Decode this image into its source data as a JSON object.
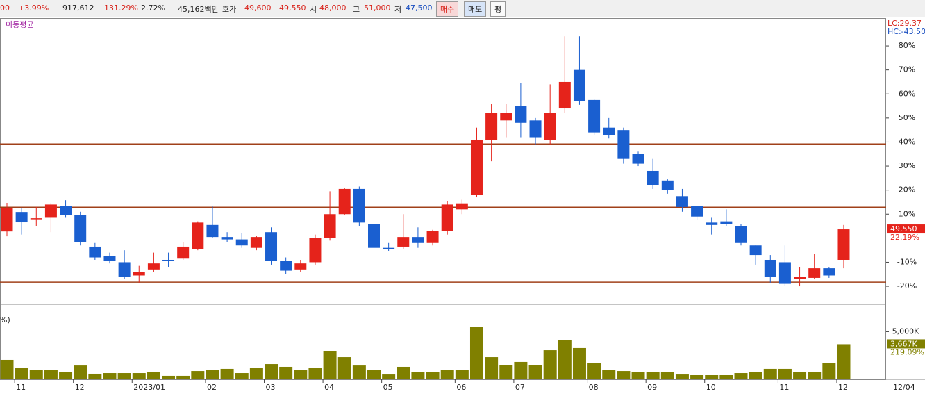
{
  "toolbar": {
    "change": "00",
    "change_pct": "+3.99%",
    "volume": "917,612",
    "volume_ratio": "131.29%",
    "turnover": "2.72%",
    "amount": "45,162백만",
    "quote_label": "호가",
    "ask": "49,600",
    "bid": "49,550",
    "open_label": "시",
    "open": "48,000",
    "high_label": "고",
    "high": "51,000",
    "low_label": "저",
    "low": "47,500",
    "buy": "매수",
    "sell": "매도",
    "avg": "평"
  },
  "chart_data": {
    "type": "candlestick",
    "indicator_label": "이동평균",
    "lc_label": "LC:29.37",
    "hc_label": "HC:-43.50",
    "last_price_label": "49,550",
    "last_change_label": "22.19%",
    "volume_panel_label": "%)",
    "volume_last_label": "3,667K",
    "volume_ratio_label": "219.09%",
    "last_date": "12/04",
    "categories": [
      null,
      "11",
      null,
      null,
      null,
      "12",
      null,
      null,
      null,
      "2023/01",
      null,
      null,
      null,
      null,
      "02",
      null,
      null,
      null,
      "03",
      null,
      null,
      null,
      "04",
      null,
      null,
      null,
      "05",
      null,
      null,
      null,
      null,
      "06",
      null,
      null,
      null,
      "07",
      null,
      null,
      null,
      null,
      "08",
      null,
      null,
      null,
      "09",
      null,
      null,
      null,
      "10",
      null,
      null,
      null,
      null,
      "11",
      null,
      null,
      null,
      "12"
    ],
    "open": [
      2.8,
      10.9,
      8.0,
      8.5,
      13.5,
      9.5,
      -3.5,
      -7.5,
      -10,
      -15.5,
      -13,
      -9,
      -8.5,
      -4.5,
      5.5,
      0.5,
      -0.5,
      -4,
      2.5,
      -9.5,
      -13,
      -10,
      0,
      10,
      20.5,
      6,
      -4,
      -3.5,
      0.5,
      -2,
      3,
      12,
      18,
      41,
      49,
      55,
      49,
      41,
      54,
      70,
      57.5,
      46,
      45,
      35,
      28,
      24,
      17.5,
      13.5,
      6.5,
      7,
      5,
      -3,
      -9,
      -10,
      -17,
      -16.5,
      -12.5,
      -9
    ],
    "high": [
      14.7,
      12.4,
      13,
      14.7,
      15.8,
      11,
      -2,
      -6,
      -5,
      -11.5,
      -6,
      -6,
      -1.5,
      7,
      13.2,
      2.5,
      2,
      1,
      4.5,
      -8,
      -9,
      1.5,
      19.5,
      21,
      21.5,
      6.5,
      -2,
      10,
      4.5,
      3.5,
      15.5,
      16,
      46,
      56,
      56,
      64.5,
      50,
      64,
      84,
      84,
      58,
      50,
      46,
      36,
      33,
      24.5,
      20.5,
      13.5,
      8.5,
      12,
      6,
      -3,
      -7,
      -3,
      -12,
      -6.5,
      -12,
      5.5
    ],
    "low": [
      0.8,
      1.5,
      5,
      2.5,
      8.5,
      -3,
      -9,
      -10.5,
      -17,
      -18.5,
      -14,
      -12,
      -9,
      -5,
      0,
      -1.5,
      -4,
      -5,
      -11,
      -15,
      -14,
      -11,
      -1,
      9.5,
      5,
      -7.5,
      -5.5,
      -4.5,
      -4,
      -3,
      1.5,
      10,
      17,
      32,
      42,
      42,
      39,
      39,
      52,
      55.5,
      43,
      41.5,
      31,
      30,
      20.5,
      18.5,
      11,
      7.5,
      1.5,
      5,
      -3,
      -11,
      -18.5,
      -20,
      -20,
      -17,
      -16.5,
      -12.5
    ],
    "close": [
      12.4,
      6.6,
      8.3,
      14,
      9.5,
      -1.5,
      -8,
      -9.5,
      -16,
      -14,
      -10.5,
      -9.5,
      -3.5,
      6.5,
      0.5,
      -0.5,
      -3,
      0.5,
      -9.5,
      -13.5,
      -10.5,
      0,
      10,
      20.5,
      6.5,
      -4,
      -4.5,
      0.5,
      -2,
      3,
      14,
      14.5,
      41,
      52,
      52,
      48,
      42,
      52,
      65,
      57,
      44,
      43,
      33,
      31,
      22,
      20,
      13,
      9,
      5.5,
      6,
      -2,
      -7,
      -16,
      -19,
      -16,
      -12.5,
      -15.5,
      3.7
    ],
    "up_color": "#e5231b",
    "down_color": "#1a5fd0",
    "ylim": [
      -27.5,
      91
    ],
    "yticks": [
      {
        "value": 80,
        "label": "80%"
      },
      {
        "value": 70,
        "label": "70%"
      },
      {
        "value": 60,
        "label": "60%"
      },
      {
        "value": 50,
        "label": "50%"
      },
      {
        "value": 40,
        "label": "40%"
      },
      {
        "value": 30,
        "label": "30%"
      },
      {
        "value": 20,
        "label": "20%"
      },
      {
        "value": 10,
        "label": "10%"
      },
      {
        "value": -10,
        "label": "-10%"
      },
      {
        "value": -20,
        "label": "-20%"
      }
    ],
    "hlines": [
      39.2,
      12.9,
      -18.3
    ],
    "hline_color": "#a0401a",
    "volume": [
      2000,
      1180,
      890,
      890,
      670,
      1400,
      520,
      590,
      590,
      590,
      670,
      300,
      300,
      810,
      890,
      1040,
      590,
      1180,
      1550,
      1260,
      890,
      1110,
      2960,
      2290,
      1400,
      890,
      440,
      1260,
      740,
      740,
      960,
      960,
      5550,
      2290,
      1480,
      1780,
      1480,
      3030,
      4070,
      3260,
      1700,
      890,
      810,
      740,
      740,
      740,
      440,
      370,
      370,
      370,
      590,
      740,
      1040,
      1040,
      670,
      740,
      1630,
      3667
    ],
    "volume_color": "#808000",
    "volume_ylim": [
      0,
      7400
    ],
    "volume_yticks": [
      {
        "value": 5000,
        "label": "5,000K"
      }
    ]
  }
}
